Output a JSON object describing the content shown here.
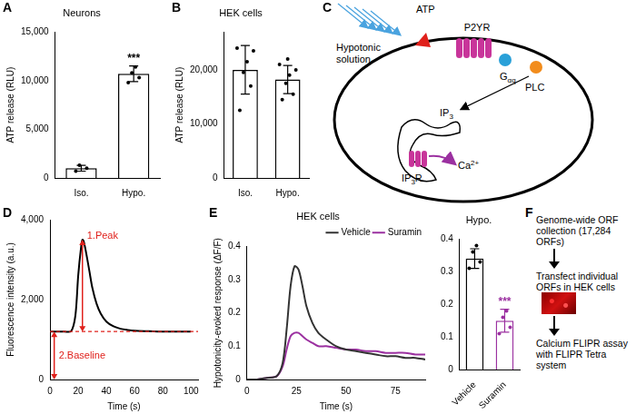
{
  "chart_data": [
    {
      "panel": "A",
      "type": "bar",
      "title": "Neurons",
      "categories": [
        "Iso.",
        "Hypo."
      ],
      "values": [
        1000,
        10700
      ],
      "errors": [
        300,
        800
      ],
      "points": [
        [
          700,
          1000,
          1300
        ],
        [
          9800,
          10300,
          10800,
          11400
        ]
      ],
      "color": "#000000",
      "ylabel": "ATP release (RLU)",
      "ylim": [
        0,
        15000
      ],
      "yticks": [
        0,
        {
          "value": 5000,
          "label": "5,000"
        },
        {
          "value": 10000,
          "label": "10,000"
        },
        {
          "value": 15000,
          "label": "15,000"
        }
      ],
      "annotations": [
        {
          "text": "***",
          "category": "Hypo.",
          "color": "#000000"
        }
      ]
    },
    {
      "panel": "B",
      "type": "bar",
      "title": "HEK cells",
      "categories": [
        "Iso.",
        "Hypo."
      ],
      "values": [
        20000,
        18200
      ],
      "errors": [
        4500,
        2600
      ],
      "points": [
        [
          12500,
          17000,
          19500,
          21500,
          23500,
          24000
        ],
        [
          14500,
          15500,
          17500,
          19000,
          20000,
          21000,
          22000
        ]
      ],
      "color": "#000000",
      "ylabel": "ATP release (RLU)",
      "ylim": [
        0,
        27000
      ],
      "yticks": [
        0,
        {
          "value": 10000,
          "label": "10,000"
        },
        {
          "value": 20000,
          "label": "20,000"
        }
      ]
    },
    {
      "panel": "D",
      "type": "line",
      "x": [
        0,
        5,
        10,
        15,
        18,
        20,
        22,
        23,
        24,
        26,
        28,
        30,
        33,
        36,
        40,
        45,
        50,
        55,
        60,
        70,
        80,
        90,
        100
      ],
      "values": [
        1200,
        1200,
        1200,
        1210,
        1600,
        2600,
        3300,
        3500,
        3450,
        3100,
        2700,
        2300,
        1900,
        1650,
        1450,
        1330,
        1270,
        1240,
        1220,
        1210,
        1200,
        1200,
        1200
      ],
      "color": "#000000",
      "xlabel": "Time (s)",
      "ylabel": "Fluorescence intensity (a.u.)",
      "xlim": [
        0,
        105
      ],
      "xticks": [
        0,
        20,
        40,
        60,
        80,
        100
      ],
      "ylim": [
        0,
        4000
      ],
      "yticks": [
        0,
        {
          "value": 2000,
          "label": "2,000"
        },
        {
          "value": 4000,
          "label": "4,000"
        }
      ],
      "annotations": [
        {
          "text": "1.Peak",
          "x": 23,
          "y_from": 1200,
          "y_to": 3500,
          "text_y": 3600,
          "color": "#e0201b"
        },
        {
          "text": "2.Baseline",
          "x": 3,
          "y_from": 0,
          "y_to": 1200,
          "text_y": 600,
          "color": "#e0201b"
        }
      ],
      "reference_line": {
        "y": 1200,
        "line_style": "dashed",
        "color": "#e0201b"
      }
    },
    {
      "panel": "E",
      "type": "line",
      "title": "HEK cells",
      "x": [
        0,
        5,
        10,
        15,
        18,
        20,
        22,
        24,
        26,
        28,
        30,
        33,
        36,
        40,
        45,
        50,
        55,
        60,
        65,
        70,
        75,
        80,
        85,
        90
      ],
      "series": [
        {
          "name": "Vehicle",
          "color": "#333333",
          "values": [
            0,
            0,
            0.005,
            0.01,
            0.05,
            0.15,
            0.28,
            0.34,
            0.33,
            0.28,
            0.22,
            0.17,
            0.14,
            0.12,
            0.1,
            0.09,
            0.085,
            0.08,
            0.075,
            0.07,
            0.07,
            0.065,
            0.065,
            0.06
          ]
        },
        {
          "name": "Suramin",
          "color": "#9b30a0",
          "values": [
            0,
            0,
            0.005,
            0.01,
            0.04,
            0.09,
            0.13,
            0.14,
            0.14,
            0.13,
            0.12,
            0.11,
            0.1,
            0.1,
            0.095,
            0.09,
            0.09,
            0.085,
            0.085,
            0.08,
            0.08,
            0.08,
            0.075,
            0.075
          ]
        }
      ],
      "xlabel": "Time (s)",
      "ylabel": "Hypotonicity-evoked response (ΔF/F)",
      "xlim": [
        0,
        90
      ],
      "xticks": [
        0,
        25,
        50,
        75
      ],
      "ylim": [
        0,
        0.4
      ],
      "yticks": [
        0,
        0.1,
        0.2,
        0.3,
        0.4
      ],
      "legend": "upper right"
    },
    {
      "type": "bar",
      "title": "Hypo.",
      "categories": [
        "Vehicle",
        "Suramin"
      ],
      "values": [
        0.34,
        0.15
      ],
      "errors": [
        0.03,
        0.035
      ],
      "points": [
        [
          0.31,
          0.33,
          0.36,
          0.38
        ],
        [
          0.11,
          0.13,
          0.16,
          0.18
        ]
      ],
      "colors": [
        "#000000",
        "#9b30a0"
      ],
      "ylim": [
        0,
        0.4
      ],
      "yticks": [
        0,
        0.1,
        0.2,
        0.3,
        0.4
      ],
      "annotations": [
        {
          "text": "***",
          "category": "Suramin",
          "color": "#9b30a0"
        }
      ]
    }
  ],
  "diagram": {
    "panel": "C",
    "stimulus": "Hypotonic solution",
    "ligand": "ATP",
    "receptor": "P2YR",
    "g_protein": {
      "text": "G",
      "sub": "αq"
    },
    "enzyme": "PLC",
    "messenger": {
      "text": "IP",
      "sub": "3"
    },
    "channel": {
      "text": "IP",
      "sub": "3",
      "suffix": "R"
    },
    "ion": {
      "text": "Ca",
      "sup": "2+"
    }
  },
  "flow": {
    "panel": "F",
    "steps": [
      "Genome-wide ORF collection (17,284 ORFs)",
      "Transfect individual ORFs in HEK cells",
      "Calcium FLIPR assay with FLIPR Tetra system"
    ]
  }
}
